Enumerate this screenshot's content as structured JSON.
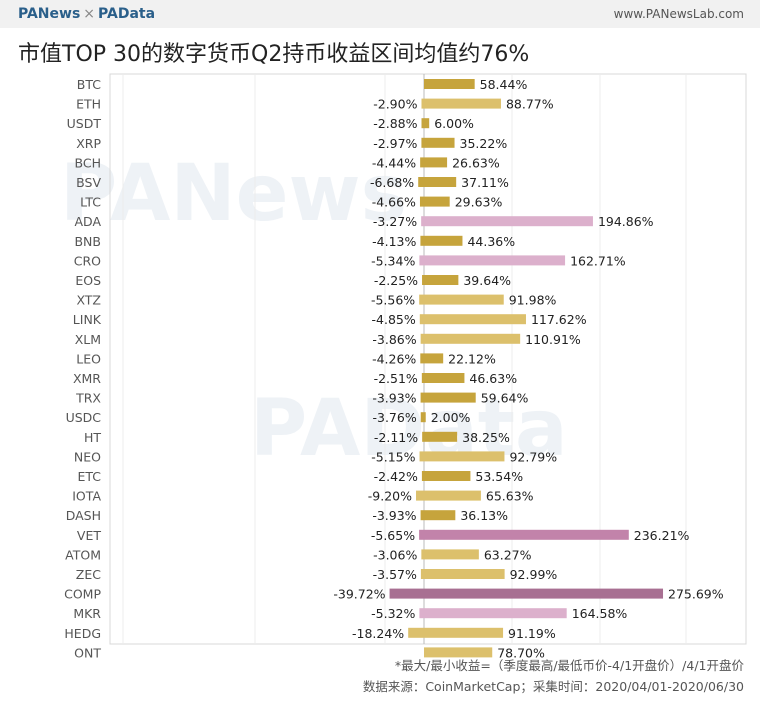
{
  "header": {
    "brand_left": "PANews",
    "separator": "×",
    "brand_right": "PAData",
    "url": "www.PANewsLab.com"
  },
  "title": "市值TOP 30的数字货币Q2持币收益区间均值约76%",
  "watermarks": [
    "PANews",
    "PAData"
  ],
  "notes": {
    "formula": "*最大/最小收益=（季度最高/最低币价-4/1开盘价）/4/1开盘价",
    "source": "数据来源：CoinMarketCap；采集时间：2020/04/01-2020/06/30"
  },
  "colors": {
    "low": "#c6a43c",
    "mid": "#dcc06c",
    "high": "#dcb0cc",
    "top": "#c283aa",
    "max": "#a86f92"
  },
  "chart_data": {
    "type": "bar",
    "orientation": "horizontal",
    "grid": true,
    "categories": [
      "BTC",
      "ETH",
      "USDT",
      "XRP",
      "BCH",
      "BSV",
      "LTC",
      "ADA",
      "BNB",
      "CRO",
      "EOS",
      "XTZ",
      "LINK",
      "XLM",
      "LEO",
      "XMR",
      "TRX",
      "USDC",
      "HT",
      "NEO",
      "ETC",
      "IOTA",
      "DASH",
      "VET",
      "ATOM",
      "ZEC",
      "COMP",
      "MKR",
      "HEDG",
      "ONT"
    ],
    "series": [
      {
        "values": [
          null,
          -2.9,
          -2.88,
          -2.97,
          -4.44,
          -6.68,
          -4.66,
          -3.27,
          -4.13,
          -5.34,
          -2.25,
          -5.56,
          -4.85,
          -3.86,
          -4.26,
          -2.51,
          -3.93,
          -3.76,
          -2.11,
          -5.15,
          -2.42,
          -9.2,
          -3.93,
          -5.65,
          -3.06,
          -3.57,
          -39.72,
          -5.32,
          -18.24,
          null
        ],
        "labels": [
          "",
          "-2.90%",
          "-2.88%",
          "-2.97%",
          "-4.44%",
          "-6.68%",
          "-4.66%",
          "-3.27%",
          "-4.13%",
          "-5.34%",
          "-2.25%",
          "-5.56%",
          "-4.85%",
          "-3.86%",
          "-4.26%",
          "-2.51%",
          "-3.93%",
          "-3.76%",
          "-2.11%",
          "-5.15%",
          "-2.42%",
          "-9.20%",
          "-3.93%",
          "-5.65%",
          "-3.06%",
          "-3.57%",
          "-39.72%",
          "-5.32%",
          "-18.24%",
          ""
        ]
      },
      {
        "values": [
          58.44,
          88.77,
          6.0,
          35.22,
          26.63,
          37.11,
          29.63,
          194.86,
          44.36,
          162.71,
          39.64,
          91.98,
          117.62,
          110.91,
          22.12,
          46.63,
          59.64,
          2.0,
          38.25,
          92.79,
          53.54,
          65.63,
          36.13,
          236.21,
          63.27,
          92.99,
          275.69,
          164.58,
          91.19,
          78.7
        ],
        "labels": [
          "58.44%",
          "88.77%",
          "6.00%",
          "35.22%",
          "26.63%",
          "37.11%",
          "29.63%",
          "194.86%",
          "44.36%",
          "162.71%",
          "39.64%",
          "91.98%",
          "117.62%",
          "110.91%",
          "22.12%",
          "46.63%",
          "59.64%",
          "2.00%",
          "38.25%",
          "92.79%",
          "53.54%",
          "65.63%",
          "36.13%",
          "236.21%",
          "63.27%",
          "92.99%",
          "275.69%",
          "164.58%",
          "91.19%",
          "78.70%"
        ]
      }
    ]
  }
}
